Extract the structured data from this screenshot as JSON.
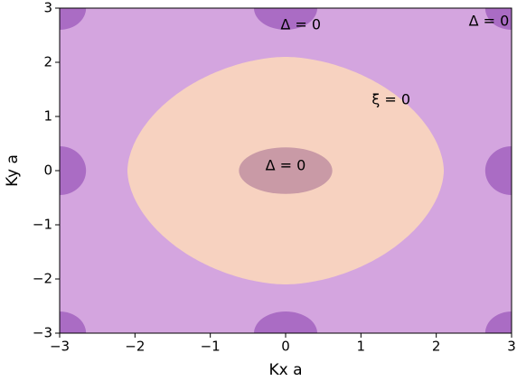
{
  "chart_data": {
    "type": "contour",
    "xlabel": "Kx a",
    "ylabel": "Ky a",
    "xlim": [
      -3,
      3
    ],
    "ylim": [
      -3,
      3
    ],
    "xticks": [
      {
        "value": -3,
        "label": "−3"
      },
      {
        "value": -2,
        "label": "−2"
      },
      {
        "value": -1,
        "label": "−1"
      },
      0,
      1,
      2,
      3
    ],
    "yticks": [
      {
        "value": -3,
        "label": "−3"
      },
      {
        "value": -2,
        "label": "−2"
      },
      {
        "value": -1,
        "label": "−1"
      },
      0,
      1,
      2,
      3
    ],
    "colors": {
      "background": "#d4a5df",
      "fermi": "#f7d2c0",
      "node": "#aa6cc4",
      "overlap": "#c99aa6"
    },
    "annotations": [
      "Δ = 0",
      "Δ = 0",
      "Δ = 0",
      "ξ = 0"
    ]
  }
}
